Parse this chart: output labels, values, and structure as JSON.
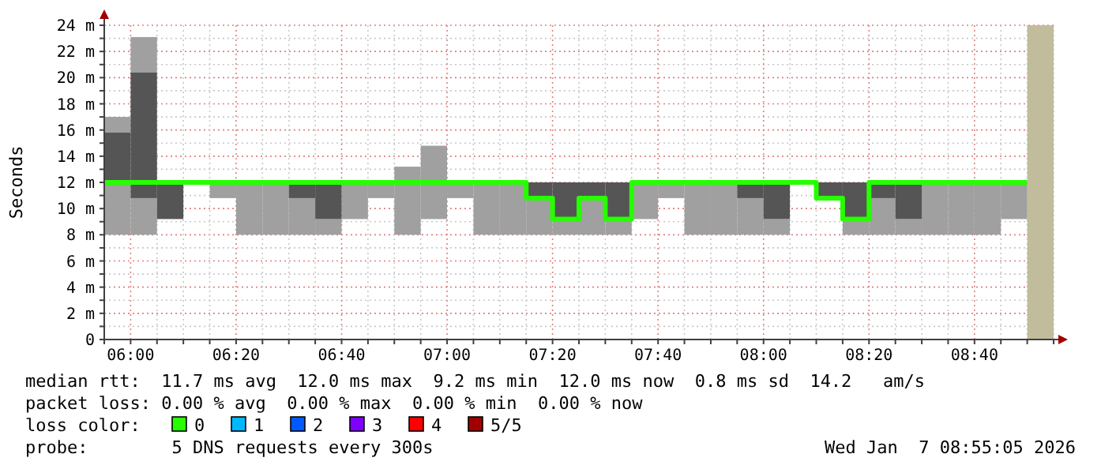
{
  "chart_data": {
    "type": "bar",
    "ylabel": "Seconds",
    "legend": "bottom",
    "legend_title": "loss color:",
    "grid": true,
    "x": [
      "2026-01-07T05:55",
      "2026-01-07T06:00",
      "2026-01-07T06:05",
      "2026-01-07T06:10",
      "2026-01-07T06:15",
      "2026-01-07T06:20",
      "2026-01-07T06:25",
      "2026-01-07T06:30",
      "2026-01-07T06:35",
      "2026-01-07T06:40",
      "2026-01-07T06:45",
      "2026-01-07T06:50",
      "2026-01-07T06:55",
      "2026-01-07T07:00",
      "2026-01-07T07:05",
      "2026-01-07T07:10",
      "2026-01-07T07:15",
      "2026-01-07T07:20",
      "2026-01-07T07:25",
      "2026-01-07T07:30",
      "2026-01-07T07:35",
      "2026-01-07T07:40",
      "2026-01-07T07:45",
      "2026-01-07T07:50",
      "2026-01-07T07:55",
      "2026-01-07T08:00",
      "2026-01-07T08:05",
      "2026-01-07T08:10",
      "2026-01-07T08:15",
      "2026-01-07T08:20",
      "2026-01-07T08:25",
      "2026-01-07T08:30",
      "2026-01-07T08:35",
      "2026-01-07T08:40",
      "2026-01-07T08:45"
    ],
    "series": [
      {
        "color": "#a0a0a0",
        "base": [
          8,
          8,
          null,
          null,
          10.8,
          8,
          8,
          8,
          8,
          9.2,
          10.8,
          8,
          9.2,
          10.8,
          8,
          8,
          8,
          8,
          8,
          8,
          9.2,
          10.8,
          8,
          8,
          8,
          8,
          null,
          null,
          8,
          8,
          8,
          8,
          8,
          8,
          9.2
        ],
        "values": [
          4,
          2.8,
          null,
          null,
          1.2,
          4,
          4,
          2.8,
          1.2,
          2.8,
          1.2,
          5.2,
          5.6,
          1.2,
          4,
          4,
          2.8,
          1.2,
          2.8,
          1.2,
          2.8,
          1.2,
          4,
          4,
          2.8,
          1.2,
          null,
          null,
          1.2,
          2.8,
          1.2,
          4,
          4,
          4,
          2.8
        ]
      },
      {
        "color": "#a0a0a0",
        "base": [
          15.8,
          20.4,
          null,
          null,
          null,
          null,
          null,
          null,
          null,
          null,
          null,
          null,
          null,
          null,
          null,
          null,
          null,
          null,
          null,
          null,
          null,
          null,
          null,
          null,
          null,
          null,
          null,
          null,
          null,
          null,
          null,
          null,
          null,
          null,
          null
        ],
        "values": [
          1.2,
          2.7,
          null,
          null,
          null,
          null,
          null,
          null,
          null,
          null,
          null,
          null,
          null,
          null,
          null,
          null,
          null,
          null,
          null,
          null,
          null,
          null,
          null,
          null,
          null,
          null,
          null,
          null,
          null,
          null,
          null,
          null,
          null,
          null,
          null
        ]
      },
      {
        "color": "#555555",
        "base": [
          12,
          10.8,
          9.2,
          null,
          null,
          null,
          null,
          10.8,
          9.2,
          null,
          null,
          null,
          null,
          null,
          null,
          null,
          10.8,
          9.2,
          10.8,
          9.2,
          null,
          null,
          null,
          null,
          10.8,
          9.2,
          null,
          10.8,
          9.2,
          10.8,
          9.2,
          null,
          null,
          null,
          null
        ],
        "values": [
          3.8,
          9.6,
          2.8,
          null,
          null,
          null,
          null,
          1.2,
          2.8,
          null,
          null,
          null,
          null,
          null,
          null,
          null,
          1.2,
          2.8,
          1.2,
          2.8,
          null,
          null,
          null,
          null,
          1.2,
          2.8,
          null,
          1.2,
          2.8,
          1.2,
          2.8,
          null,
          null,
          null,
          null
        ]
      },
      {
        "type": "step",
        "name": "0",
        "color": "#26ff00",
        "x": [
          "2026-01-07T05:55",
          "2026-01-07T06:00",
          "2026-01-07T06:05",
          "2026-01-07T06:10",
          "2026-01-07T06:15",
          "2026-01-07T06:20",
          "2026-01-07T06:25",
          "2026-01-07T06:30",
          "2026-01-07T06:35",
          "2026-01-07T06:40",
          "2026-01-07T06:45",
          "2026-01-07T06:50",
          "2026-01-07T06:55",
          "2026-01-07T07:00",
          "2026-01-07T07:05",
          "2026-01-07T07:10",
          "2026-01-07T07:15",
          "2026-01-07T07:20",
          "2026-01-07T07:25",
          "2026-01-07T07:30",
          "2026-01-07T07:35",
          "2026-01-07T07:40",
          "2026-01-07T07:45",
          "2026-01-07T07:50",
          "2026-01-07T07:55",
          "2026-01-07T08:00",
          "2026-01-07T08:05",
          "2026-01-07T08:10",
          "2026-01-07T08:15",
          "2026-01-07T08:20",
          "2026-01-07T08:25",
          "2026-01-07T08:30",
          "2026-01-07T08:35",
          "2026-01-07T08:40",
          "2026-01-07T08:45",
          "2026-01-07T08:50"
        ],
        "values": [
          12,
          12,
          12,
          12,
          12,
          12,
          12,
          12,
          12,
          12,
          12,
          12,
          12,
          12,
          12,
          12,
          10.8,
          9.2,
          10.8,
          9.2,
          12,
          12,
          12,
          12,
          12,
          12,
          12,
          10.8,
          9.2,
          12,
          12,
          12,
          12,
          12,
          12,
          12
        ]
      },
      {
        "type": "step",
        "name": "1",
        "color": "#00b8ff",
        "values": [
          null,
          null,
          null,
          null,
          null,
          null,
          null,
          null,
          null,
          null,
          null,
          null,
          null,
          null,
          null,
          null,
          null,
          null,
          null,
          null,
          null,
          null,
          null,
          null,
          null,
          null,
          null,
          null,
          null,
          null,
          null,
          null,
          null,
          null,
          null
        ]
      },
      {
        "type": "step",
        "name": "2",
        "color": "#0059ff",
        "values": [
          null,
          null,
          null,
          null,
          null,
          null,
          null,
          null,
          null,
          null,
          null,
          null,
          null,
          null,
          null,
          null,
          null,
          null,
          null,
          null,
          null,
          null,
          null,
          null,
          null,
          null,
          null,
          null,
          null,
          null,
          null,
          null,
          null,
          null,
          null
        ]
      },
      {
        "type": "step",
        "name": "3",
        "color": "#7e00ff",
        "values": [
          null,
          null,
          null,
          null,
          null,
          null,
          null,
          null,
          null,
          null,
          null,
          null,
          null,
          null,
          null,
          null,
          null,
          null,
          null,
          null,
          null,
          null,
          null,
          null,
          null,
          null,
          null,
          null,
          null,
          null,
          null,
          null,
          null,
          null,
          null
        ]
      },
      {
        "type": "step",
        "name": "4",
        "color": "#ff0000",
        "values": [
          null,
          null,
          null,
          null,
          null,
          null,
          null,
          null,
          null,
          null,
          null,
          null,
          null,
          null,
          null,
          null,
          null,
          null,
          null,
          null,
          null,
          null,
          null,
          null,
          null,
          null,
          null,
          null,
          null,
          null,
          null,
          null,
          null,
          null,
          null
        ]
      },
      {
        "type": "step",
        "name": "5/5",
        "color": "#a10000",
        "values": [
          null,
          null,
          null,
          null,
          null,
          null,
          null,
          null,
          null,
          null,
          null,
          null,
          null,
          null,
          null,
          null,
          null,
          null,
          null,
          null,
          null,
          null,
          null,
          null,
          null,
          null,
          null,
          null,
          null,
          null,
          null,
          null,
          null,
          null,
          null
        ]
      }
    ],
    "bands": [
      {
        "axis": "x",
        "from": "2026-01-07T08:50",
        "to": "2026-01-07T08:55",
        "color": "#c0bc9c"
      }
    ],
    "xlim": [
      "2026-01-07T05:55",
      "2026-01-07T08:55"
    ],
    "xticks": [
      {
        "value": "2026-01-07T05:55",
        "label": null
      },
      {
        "value": "2026-01-07T06:00",
        "label": "06:00"
      },
      {
        "value": "2026-01-07T06:05",
        "label": null
      },
      {
        "value": "2026-01-07T06:10",
        "label": null
      },
      {
        "value": "2026-01-07T06:15",
        "label": null
      },
      {
        "value": "2026-01-07T06:20",
        "label": "06:20"
      },
      {
        "value": "2026-01-07T06:25",
        "label": null
      },
      {
        "value": "2026-01-07T06:30",
        "label": null
      },
      {
        "value": "2026-01-07T06:35",
        "label": null
      },
      {
        "value": "2026-01-07T06:40",
        "label": "06:40"
      },
      {
        "value": "2026-01-07T06:45",
        "label": null
      },
      {
        "value": "2026-01-07T06:50",
        "label": null
      },
      {
        "value": "2026-01-07T06:55",
        "label": null
      },
      {
        "value": "2026-01-07T07:00",
        "label": "07:00"
      },
      {
        "value": "2026-01-07T07:05",
        "label": null
      },
      {
        "value": "2026-01-07T07:10",
        "label": null
      },
      {
        "value": "2026-01-07T07:15",
        "label": null
      },
      {
        "value": "2026-01-07T07:20",
        "label": "07:20"
      },
      {
        "value": "2026-01-07T07:25",
        "label": null
      },
      {
        "value": "2026-01-07T07:30",
        "label": null
      },
      {
        "value": "2026-01-07T07:35",
        "label": null
      },
      {
        "value": "2026-01-07T07:40",
        "label": "07:40"
      },
      {
        "value": "2026-01-07T07:45",
        "label": null
      },
      {
        "value": "2026-01-07T07:50",
        "label": null
      },
      {
        "value": "2026-01-07T07:55",
        "label": null
      },
      {
        "value": "2026-01-07T08:00",
        "label": "08:00"
      },
      {
        "value": "2026-01-07T08:05",
        "label": null
      },
      {
        "value": "2026-01-07T08:10",
        "label": null
      },
      {
        "value": "2026-01-07T08:15",
        "label": null
      },
      {
        "value": "2026-01-07T08:20",
        "label": "08:20"
      },
      {
        "value": "2026-01-07T08:25",
        "label": null
      },
      {
        "value": "2026-01-07T08:30",
        "label": null
      },
      {
        "value": "2026-01-07T08:35",
        "label": null
      },
      {
        "value": "2026-01-07T08:40",
        "label": "08:40"
      },
      {
        "value": "2026-01-07T08:45",
        "label": null
      },
      {
        "value": "2026-01-07T08:50",
        "label": null
      },
      {
        "value": "2026-01-07T08:55",
        "label": null
      }
    ],
    "ylim": [
      0,
      24
    ],
    "yticks": [
      {
        "value": 0,
        "label": "0"
      },
      {
        "value": 1,
        "label": null
      },
      {
        "value": 2,
        "label": "2 m"
      },
      {
        "value": 3,
        "label": null
      },
      {
        "value": 4,
        "label": "4 m"
      },
      {
        "value": 5,
        "label": null
      },
      {
        "value": 6,
        "label": "6 m"
      },
      {
        "value": 7,
        "label": null
      },
      {
        "value": 8,
        "label": "8 m"
      },
      {
        "value": 9,
        "label": null
      },
      {
        "value": 10,
        "label": "10 m"
      },
      {
        "value": 11,
        "label": null
      },
      {
        "value": 12,
        "label": "12 m"
      },
      {
        "value": 13,
        "label": null
      },
      {
        "value": 14,
        "label": "14 m"
      },
      {
        "value": 15,
        "label": null
      },
      {
        "value": 16,
        "label": "16 m"
      },
      {
        "value": 17,
        "label": null
      },
      {
        "value": 18,
        "label": "18 m"
      },
      {
        "value": 19,
        "label": null
      },
      {
        "value": 20,
        "label": "20 m"
      },
      {
        "value": 21,
        "label": null
      },
      {
        "value": 22,
        "label": "22 m"
      },
      {
        "value": 23,
        "label": null
      },
      {
        "value": 24,
        "label": "24 m"
      }
    ],
    "annotations": [
      "median rtt:  11.7 ms avg  12.0 ms max  9.2 ms min  12.0 ms now  0.8 ms sd  14.2   am/s",
      "packet loss: 0.00 % avg  0.00 % max  0.00 % min  0.00 % now",
      "probe:        5 DNS requests every 300s",
      "Wed Jan  7 08:55:05 2026"
    ]
  }
}
